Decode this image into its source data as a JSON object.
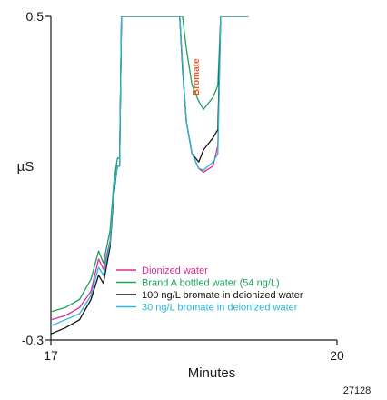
{
  "chart_data": {
    "type": "line",
    "xlabel": "Minutes",
    "ylabel": "µS",
    "xlim": [
      17,
      20
    ],
    "ylim": [
      -0.3,
      0.5
    ],
    "x_ticks": [
      {
        "value": 17,
        "label": "17"
      },
      {
        "value": 20,
        "label": "20"
      }
    ],
    "y_ticks": [
      {
        "value": 0.5,
        "label": "0.5"
      },
      {
        "value": -0.3,
        "label": "-0.3"
      }
    ],
    "annotation": {
      "text": "Bromate",
      "x": 18.55,
      "y": 0.35,
      "color": "#e0602a"
    },
    "figure_id": "27128",
    "legend_position": "lower-left",
    "series": [
      {
        "name": "Dionized water",
        "color": "#e0289a",
        "x": [
          17.0,
          17.15,
          17.3,
          17.42,
          17.5,
          17.55,
          17.62,
          17.66,
          17.69,
          17.7,
          17.72,
          17.74,
          17.755,
          17.77,
          17.8,
          17.85,
          17.9,
          17.95,
          18.0,
          18.04,
          18.08,
          18.1,
          18.13,
          18.15,
          18.18,
          18.21,
          18.25,
          18.3,
          18.35,
          18.38,
          18.42,
          18.48,
          18.55,
          18.6,
          18.7,
          18.75,
          18.78,
          18.8,
          18.83,
          18.86,
          18.88,
          18.9,
          18.95,
          18.98,
          19.0,
          19.02,
          19.05,
          19.07
        ],
        "y": [
          -0.25,
          -0.24,
          -0.22,
          -0.18,
          -0.1,
          -0.125,
          -0.055,
          0.07,
          0.12,
          0.13,
          0.13,
          0.5,
          0.5,
          0.5,
          0.5,
          0.5,
          0.5,
          0.5,
          0.5,
          0.5,
          0.5,
          0.5,
          0.5,
          0.5,
          0.5,
          0.5,
          0.5,
          0.5,
          0.5,
          0.38,
          0.24,
          0.16,
          0.124,
          0.115,
          0.13,
          0.18,
          0.5,
          0.5,
          0.5,
          0.5,
          0.5,
          0.5,
          0.5,
          0.5,
          0.5,
          0.5,
          0.5,
          0.5
        ]
      },
      {
        "name": "Brand A bottled water (54 ng/L)",
        "color": "#1fa15a",
        "x": [
          17.0,
          17.15,
          17.3,
          17.42,
          17.5,
          17.55,
          17.62,
          17.66,
          17.69,
          17.7,
          17.72,
          17.74,
          17.755,
          17.77,
          17.8,
          17.85,
          17.9,
          17.95,
          18.0,
          18.04,
          18.08,
          18.1,
          18.13,
          18.15,
          18.18,
          18.21,
          18.25,
          18.3,
          18.35,
          18.38,
          18.42,
          18.48,
          18.55,
          18.6,
          18.7,
          18.75,
          18.78,
          18.8,
          18.83,
          18.86,
          18.88,
          18.9,
          18.95,
          18.98,
          19.0,
          19.02,
          19.05,
          19.07
        ],
        "y": [
          -0.23,
          -0.22,
          -0.2,
          -0.15,
          -0.08,
          -0.11,
          -0.03,
          0.09,
          0.14,
          0.15,
          0.15,
          0.5,
          0.5,
          0.5,
          0.5,
          0.5,
          0.5,
          0.5,
          0.5,
          0.5,
          0.5,
          0.5,
          0.5,
          0.5,
          0.5,
          0.5,
          0.5,
          0.5,
          0.5,
          0.5,
          0.42,
          0.33,
          0.29,
          0.27,
          0.3,
          0.33,
          0.5,
          0.5,
          0.5,
          0.5,
          0.5,
          0.5,
          0.5,
          0.5,
          0.5,
          0.5,
          0.5,
          0.5
        ]
      },
      {
        "name": "100 ng/L bromate in deionized water",
        "color": "#111111",
        "x": [
          17.0,
          17.15,
          17.3,
          17.42,
          17.5,
          17.55,
          17.62,
          17.66,
          17.69,
          17.7,
          17.72,
          17.74,
          17.755,
          17.77,
          17.8,
          17.85,
          17.9,
          17.95,
          18.0,
          18.04,
          18.08,
          18.1,
          18.13,
          18.15,
          18.18,
          18.21,
          18.25,
          18.3,
          18.35,
          18.38,
          18.42,
          18.48,
          18.55,
          18.6,
          18.7,
          18.75,
          18.78,
          18.8,
          18.83,
          18.86,
          18.88,
          18.9,
          18.95,
          18.98,
          19.0,
          19.02,
          19.05,
          19.07
        ],
        "y": [
          -0.285,
          -0.27,
          -0.25,
          -0.2,
          -0.14,
          -0.16,
          -0.07,
          0.06,
          0.12,
          0.13,
          0.13,
          0.5,
          0.5,
          0.5,
          0.5,
          0.5,
          0.5,
          0.5,
          0.5,
          0.5,
          0.5,
          0.5,
          0.5,
          0.5,
          0.5,
          0.5,
          0.5,
          0.5,
          0.5,
          0.37,
          0.24,
          0.16,
          0.14,
          0.17,
          0.2,
          0.22,
          0.5,
          0.5,
          0.5,
          0.5,
          0.5,
          0.5,
          0.5,
          0.5,
          0.5,
          0.5,
          0.5,
          0.5
        ]
      },
      {
        "name": "30 ng/L bromate in deionized water",
        "color": "#2ab8d8",
        "x": [
          17.0,
          17.15,
          17.3,
          17.42,
          17.5,
          17.55,
          17.62,
          17.66,
          17.69,
          17.7,
          17.72,
          17.74,
          17.755,
          17.77,
          17.8,
          17.85,
          17.9,
          17.95,
          18.0,
          18.04,
          18.08,
          18.1,
          18.13,
          18.15,
          18.18,
          18.21,
          18.25,
          18.3,
          18.35,
          18.38,
          18.42,
          18.48,
          18.55,
          18.6,
          18.7,
          18.75,
          18.78,
          18.8,
          18.83,
          18.86,
          18.88,
          18.9,
          18.95,
          18.98,
          19.0,
          19.02,
          19.05,
          19.07
        ],
        "y": [
          -0.265,
          -0.25,
          -0.235,
          -0.19,
          -0.12,
          -0.14,
          -0.06,
          0.07,
          0.12,
          0.13,
          0.13,
          0.5,
          0.5,
          0.5,
          0.5,
          0.5,
          0.5,
          0.5,
          0.5,
          0.5,
          0.5,
          0.5,
          0.5,
          0.5,
          0.5,
          0.5,
          0.5,
          0.5,
          0.5,
          0.38,
          0.24,
          0.16,
          0.124,
          0.12,
          0.14,
          0.16,
          0.5,
          0.5,
          0.5,
          0.5,
          0.5,
          0.5,
          0.5,
          0.5,
          0.5,
          0.5,
          0.5,
          0.5
        ]
      }
    ]
  }
}
